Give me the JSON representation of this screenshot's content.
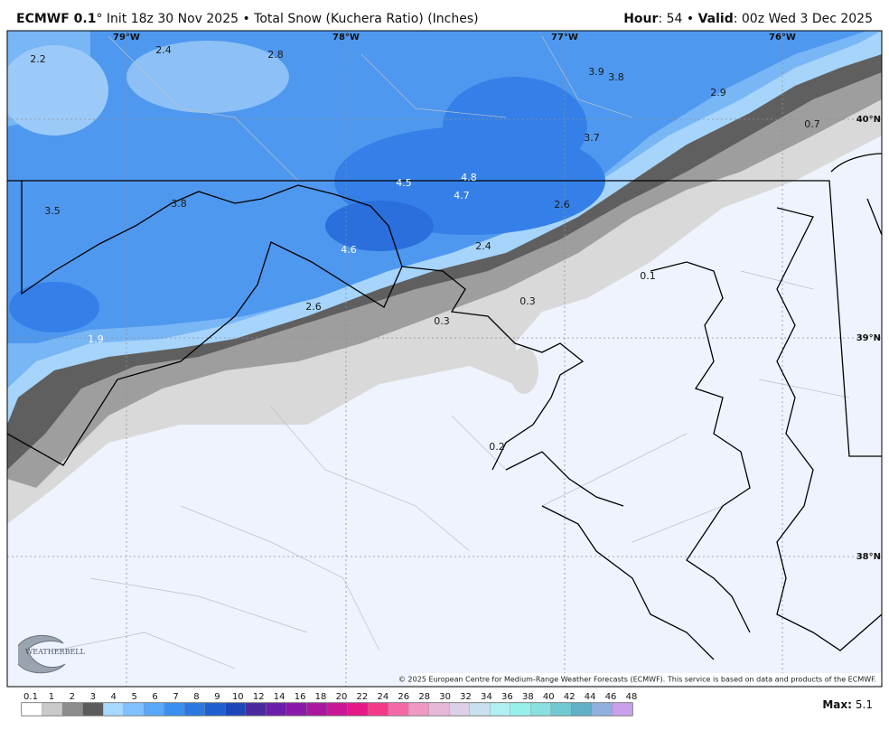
{
  "header": {
    "left": [
      {
        "text": "ECMWF 0.1",
        "bold": true
      },
      {
        "text": "° Init 18z 30 Nov 2025 • Total Snow (Kuchera Ratio) (Inches)",
        "bold": false
      }
    ],
    "right": [
      {
        "text": "Hour",
        "bold": true
      },
      {
        "text": ": 54 • ",
        "bold": false
      },
      {
        "text": "Valid",
        "bold": true
      },
      {
        "text": ": 00z Wed 3 Dec 2025",
        "bold": false
      }
    ]
  },
  "map": {
    "lon_labels": [
      "79°W",
      "78°W",
      "77°W",
      "76°W"
    ],
    "lat_labels": [
      "40°N",
      "39°N",
      "38°N"
    ],
    "labels": [
      {
        "value": 2.2,
        "color": "#1a1a1a"
      },
      {
        "value": 2.4,
        "color": "#1a1a1a"
      },
      {
        "value": 2.8,
        "color": "#1a1a1a"
      },
      {
        "value": 3.9,
        "color": "#1a1a1a"
      },
      {
        "value": 3.8,
        "color": "#1a1a1a"
      },
      {
        "value": 2.9,
        "color": "#1a1a1a"
      },
      {
        "value": 0.7,
        "color": "#1a1a1a"
      },
      {
        "value": 3.7,
        "color": "#1a1a1a"
      },
      {
        "value": 4.5,
        "color": "#ffffff"
      },
      {
        "value": 4.8,
        "color": "#ffffff"
      },
      {
        "value": 4.7,
        "color": "#ffffff"
      },
      {
        "value": 3.5,
        "color": "#1a1a1a"
      },
      {
        "value": 3.8,
        "color": "#1a1a1a"
      },
      {
        "value": 2.6,
        "color": "#1a1a1a"
      },
      {
        "value": 2.4,
        "color": "#1a1a1a"
      },
      {
        "value": 4.6,
        "color": "#ffffff"
      },
      {
        "value": 2.6,
        "color": "#1a1a1a"
      },
      {
        "value": 0.3,
        "color": "#1a1a1a"
      },
      {
        "value": 0.3,
        "color": "#1a1a1a"
      },
      {
        "value": 0.1,
        "color": "#1a1a1a"
      },
      {
        "value": 1.9,
        "color": "#ffffff"
      },
      {
        "value": 0.2,
        "color": "#1a1a1a"
      }
    ],
    "copyright": "© 2025 European Centre for Medium-Range Weather Forecasts (ECMWF). This service is based on data and products of the ECMWF.",
    "logo": "WEATHERBELL"
  },
  "colorbar": {
    "labels": [
      0.1,
      1,
      2,
      3,
      4,
      5,
      6,
      7,
      8,
      9,
      10,
      12,
      14,
      16,
      18,
      20,
      22,
      24,
      26,
      28,
      30,
      32,
      34,
      36,
      38,
      40,
      42,
      44,
      46,
      48
    ],
    "colors": [
      "#ffffff",
      "#c9c9c9",
      "#8c8c8c",
      "#5c5c5c",
      "#a8d8ff",
      "#80c0ff",
      "#5aa8f8",
      "#3a90f0",
      "#2a78e0",
      "#1e5ed0",
      "#1c46b8",
      "#4a2a9c",
      "#6a1eaa",
      "#8a18a8",
      "#aa18a0",
      "#c81896",
      "#e61888",
      "#f4388a",
      "#f468a8",
      "#f098c4",
      "#e8b8d8",
      "#dcd0e8",
      "#c8e0f0",
      "#b0f0f4",
      "#98f0ec",
      "#88e0e0",
      "#70c8d0",
      "#60b0c8",
      "#90b0e0",
      "#c8a0ec"
    ]
  },
  "footer": {
    "max_label": "Max:",
    "max_value": 5.1
  }
}
